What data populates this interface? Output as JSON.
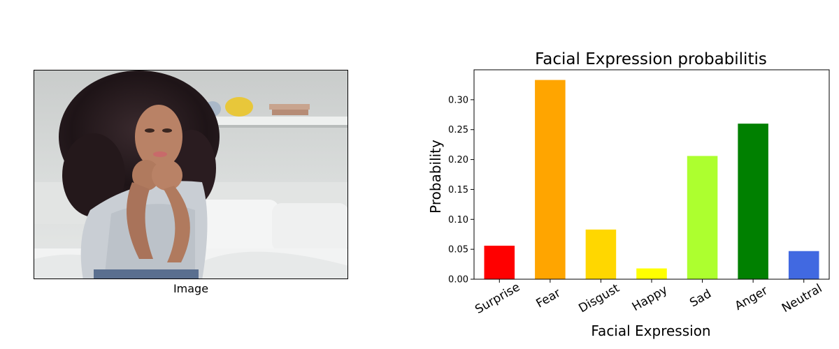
{
  "photo": {
    "caption": "Image",
    "alt": "woman-with-curly-hair-resting-chin-on-hands"
  },
  "colors": {
    "surprise": "#ff0000",
    "fear": "#ffa500",
    "disgust": "#ffd700",
    "happy": "#ffff00",
    "sad": "#adff2f",
    "anger": "#008000",
    "neutral": "#4169e1"
  },
  "chart_data": {
    "type": "bar",
    "title": "Facial Expression probabilitis",
    "xlabel": "Facial Expression",
    "ylabel": "Probability",
    "categories": [
      "Surprise",
      "Fear",
      "Disgust",
      "Happy",
      "Sad",
      "Anger",
      "Neutral"
    ],
    "values": [
      0.056,
      0.333,
      0.083,
      0.018,
      0.206,
      0.26,
      0.047
    ],
    "colors": [
      "#ff0000",
      "#ffa500",
      "#ffd700",
      "#ffff00",
      "#adff2f",
      "#008000",
      "#4169e1"
    ],
    "ylim": [
      0,
      0.35
    ],
    "yticks": [
      0.0,
      0.05,
      0.1,
      0.15,
      0.2,
      0.25,
      0.3
    ],
    "ytick_labels": [
      "0.00",
      "0.05",
      "0.10",
      "0.15",
      "0.20",
      "0.25",
      "0.30"
    ],
    "grid": false,
    "legend": "none"
  }
}
